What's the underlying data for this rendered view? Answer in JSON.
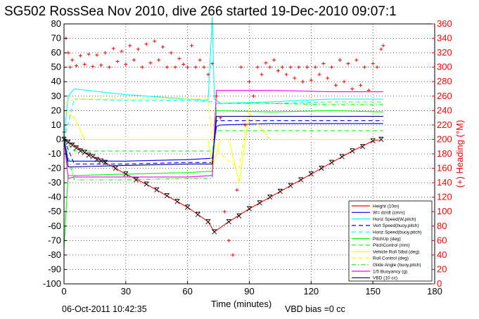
{
  "chart_data": {
    "type": "line",
    "title": "SG502 RossSea Nov 2010, dive 266 started 19-Dec-2010 09:07:1",
    "xlabel": "Time (minutes)",
    "ylabel_right": "(+) Heading (°M)",
    "xlim": [
      0,
      180
    ],
    "ylim_left": [
      -100,
      80
    ],
    "ylim_right": [
      0,
      360
    ],
    "xticks": [
      0,
      30,
      60,
      90,
      120,
      150,
      180
    ],
    "yticks_left": [
      80,
      70,
      60,
      50,
      40,
      30,
      20,
      10,
      0,
      -10,
      -20,
      -30,
      -40,
      -50,
      -60,
      -70,
      -80,
      -90,
      -100
    ],
    "yticks_right": [
      360,
      340,
      320,
      300,
      280,
      260,
      240,
      220,
      200,
      180,
      160,
      140,
      120,
      100,
      80,
      60,
      40,
      20,
      0
    ],
    "grid": true,
    "legend_position": "bottom-right",
    "footer_date": "06-Oct-2011 10:42:35",
    "footer_note": "VBD bias =0 cc",
    "series": [
      {
        "name": "Height (10m)",
        "color": "#ff0000",
        "style": "solid",
        "x": [
          0,
          5,
          10,
          20,
          30,
          40,
          50,
          60,
          70,
          73,
          80,
          90,
          100,
          110,
          120,
          130,
          140,
          150,
          154
        ],
        "y": [
          0,
          -4,
          -9,
          -16,
          -24,
          -31,
          -39,
          -47,
          -57,
          -64,
          -57,
          -48,
          -40,
          -32,
          -24,
          -16,
          -8,
          -1,
          0
        ]
      },
      {
        "name": "W= dz/dt (cm/s)",
        "color": "#0000ff",
        "style": "solid",
        "x": [
          0,
          2,
          5,
          30,
          60,
          72,
          74,
          76,
          100,
          130,
          155
        ],
        "y": [
          0,
          -15,
          -15,
          -15,
          -14,
          -13,
          9,
          10,
          11,
          11,
          11
        ]
      },
      {
        "name": "Horiz Speed(W,pitch)",
        "color": "#00ffff",
        "style": "solid",
        "x": [
          0,
          2,
          5,
          30,
          60,
          70,
          72,
          73,
          75,
          76,
          100,
          130,
          155
        ],
        "y": [
          0,
          30,
          35,
          31,
          28,
          27,
          85,
          28,
          26,
          25,
          26,
          28,
          28
        ]
      },
      {
        "name": "Vert Speed(buoy,pitch)",
        "color": "#0000ff",
        "style": "dashed",
        "x": [
          0,
          5,
          30,
          60,
          72,
          74,
          100,
          130,
          155
        ],
        "y": [
          0,
          -17,
          -17,
          -16,
          -16,
          13,
          13,
          13,
          13
        ]
      },
      {
        "name": "Horiz Speed(buoy,pitch)",
        "color": "#00ffff",
        "style": "dashed",
        "x": [
          0,
          5,
          30,
          60,
          72,
          74,
          100,
          130,
          155
        ],
        "y": [
          0,
          28,
          27,
          27,
          26,
          25,
          25,
          26,
          26
        ]
      },
      {
        "name": "PitchUp (deg)",
        "color": "#00ff00",
        "style": "solid",
        "x": [
          0,
          2,
          5,
          30,
          60,
          72,
          74,
          100,
          130,
          155
        ],
        "y": [
          -75,
          -25,
          -25,
          -24,
          -23,
          -22,
          20,
          19,
          20,
          19
        ]
      },
      {
        "name": "PitchControl (mm)",
        "color": "#00ff00",
        "style": "dashed",
        "x": [
          0,
          5,
          30,
          60,
          72,
          74,
          100,
          130,
          155
        ],
        "y": [
          0,
          -8,
          -8,
          -8,
          -8,
          6,
          6,
          6,
          6
        ]
      },
      {
        "name": "Vehicle Roll Stbd (deg)",
        "color": "#ffff00",
        "style": "solid",
        "x": [
          0,
          5,
          10,
          20,
          30,
          40,
          50,
          60,
          70,
          72,
          76,
          80,
          85,
          90,
          100,
          110,
          120,
          130,
          140,
          150,
          155
        ],
        "y": [
          20,
          15,
          0,
          0,
          0,
          0,
          0,
          0,
          0,
          -20,
          0,
          0,
          -30,
          18,
          0,
          0,
          0,
          0,
          0,
          0,
          0
        ]
      },
      {
        "name": "Roll Control (deg)",
        "color": "#ffff00",
        "style": "dashed",
        "x": [
          0,
          5,
          10,
          20,
          30,
          40,
          50,
          60,
          70,
          72,
          76,
          80,
          85,
          90,
          100,
          110,
          120,
          130,
          140,
          150,
          155
        ],
        "y": [
          25,
          28,
          28,
          28,
          28,
          28,
          28,
          28,
          28,
          0,
          -10,
          -15,
          -20,
          25,
          25,
          25,
          25,
          25,
          25,
          25,
          25
        ]
      },
      {
        "name": "Glide Angle (buoy,pitch)",
        "color": "#00ff00",
        "style": "dashdot",
        "x": [
          0,
          5,
          30,
          60,
          72,
          74,
          100,
          130,
          155
        ],
        "y": [
          0,
          -28,
          -28,
          -27,
          -27,
          25,
          25,
          24,
          24
        ]
      },
      {
        "name": "1/5 Buoyancy (g)",
        "color": "#ff00ff",
        "style": "solid",
        "x": [
          0,
          2,
          5,
          30,
          60,
          72,
          74,
          100,
          130,
          155
        ],
        "y": [
          0,
          -27,
          -26,
          -26,
          -26,
          -25,
          34,
          34,
          33,
          33
        ]
      },
      {
        "name": "VBD (10 cc)",
        "color": "#000080",
        "style": "solid",
        "x": [
          0,
          2,
          5,
          30,
          60,
          72,
          74,
          100,
          130,
          155
        ],
        "y": [
          0,
          -19,
          -19,
          -18,
          -17,
          -17,
          16,
          16,
          16,
          16
        ]
      }
    ],
    "heading_series": {
      "name": "(+) Heading (°M)",
      "color": "#ff0000",
      "marker": "+",
      "x": [
        0,
        1,
        2,
        3,
        4,
        6,
        8,
        10,
        12,
        14,
        16,
        18,
        20,
        22,
        24,
        26,
        28,
        30,
        32,
        34,
        36,
        38,
        40,
        42,
        44,
        46,
        48,
        50,
        52,
        54,
        56,
        58,
        60,
        62,
        64,
        66,
        68,
        70,
        72,
        74,
        76,
        78,
        80,
        82,
        84,
        86,
        88,
        90,
        92,
        94,
        96,
        98,
        100,
        102,
        104,
        106,
        108,
        110,
        112,
        114,
        116,
        118,
        120,
        122,
        124,
        126,
        128,
        130,
        132,
        134,
        136,
        138,
        140,
        142,
        144,
        146,
        148,
        150,
        152,
        154,
        155
      ],
      "y": [
        210,
        340,
        320,
        300,
        310,
        302,
        316,
        304,
        318,
        301,
        317,
        303,
        320,
        300,
        326,
        308,
        322,
        304,
        330,
        310,
        325,
        300,
        332,
        306,
        336,
        310,
        328,
        300,
        320,
        300,
        312,
        304,
        300,
        330,
        300,
        310,
        300,
        290,
        305,
        260,
        230,
        100,
        60,
        40,
        130,
        300,
        220,
        280,
        260,
        300,
        290,
        306,
        300,
        310,
        295,
        300,
        290,
        300,
        285,
        300,
        280,
        300,
        282,
        300,
        290,
        305,
        285,
        300,
        275,
        310,
        280,
        305,
        270,
        310,
        275,
        300,
        268,
        305,
        300,
        325,
        330
      ]
    },
    "depth_markers": {
      "name": "Height (10m) markers",
      "x": [
        0,
        2,
        4,
        6,
        8,
        10,
        12,
        14,
        16,
        18,
        20,
        25,
        30,
        35,
        40,
        45,
        50,
        55,
        60,
        65,
        70,
        73,
        80,
        85,
        90,
        95,
        100,
        105,
        110,
        115,
        120,
        125,
        130,
        135,
        140,
        145,
        150,
        154
      ],
      "y": [
        0,
        -2,
        -4,
        -6,
        -8,
        -9,
        -11,
        -12,
        -14,
        -15,
        -16,
        -20,
        -24,
        -28,
        -31,
        -35,
        -39,
        -43,
        -47,
        -52,
        -57,
        -64,
        -57,
        -53,
        -48,
        -44,
        -40,
        -36,
        -32,
        -28,
        -24,
        -20,
        -16,
        -12,
        -8,
        -5,
        -1,
        0
      ]
    }
  }
}
